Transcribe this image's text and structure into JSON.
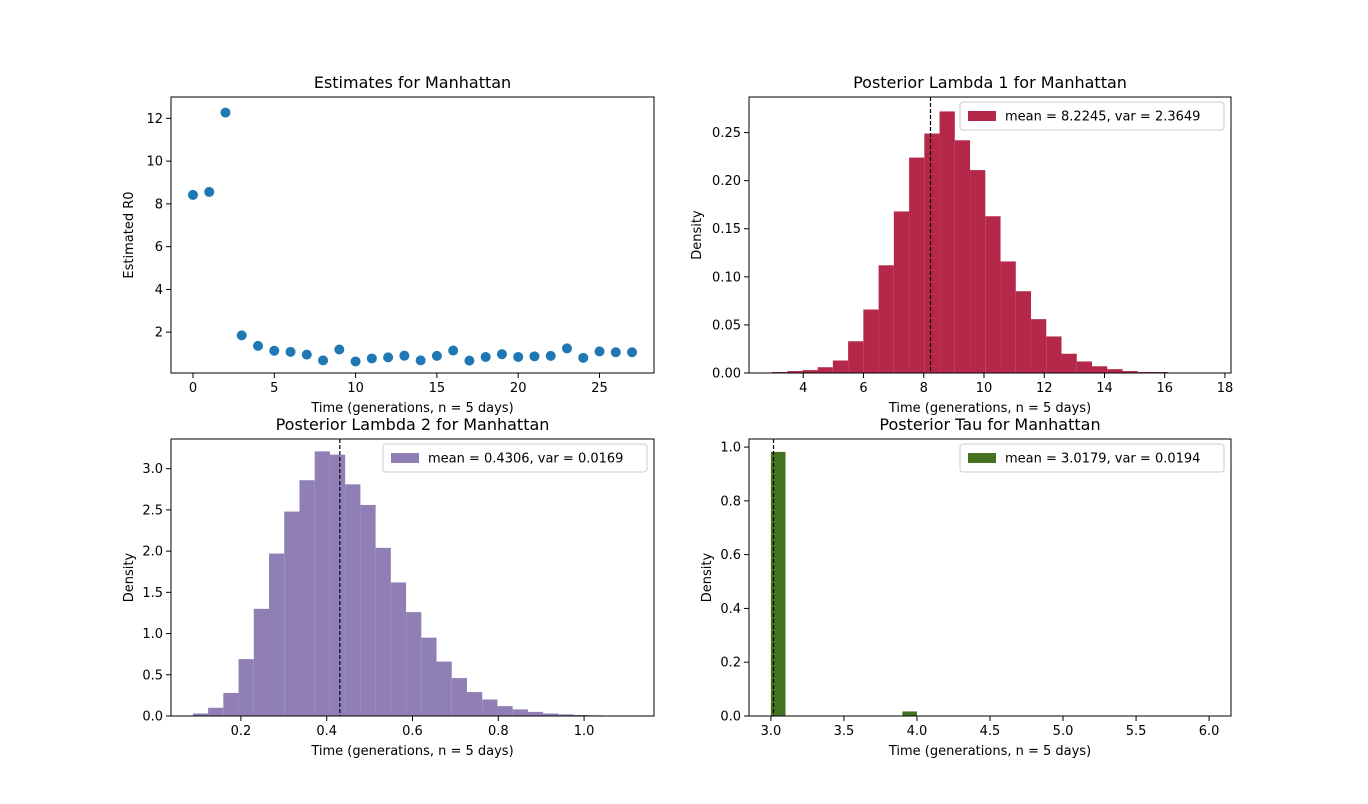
{
  "chart_data": [
    {
      "type": "scatter",
      "title": "Estimates for Manhattan",
      "xlabel": "Time (generations, n = 5 days)",
      "ylabel": "Estimated R0",
      "xlim": [
        -1.35,
        28.35
      ],
      "ylim": [
        0.09,
        13.0
      ],
      "xticks": [
        0,
        5,
        10,
        15,
        20,
        25
      ],
      "yticks": [
        2,
        4,
        6,
        8,
        10,
        12
      ],
      "color": "#1f77b4",
      "x": [
        0,
        1,
        2,
        3,
        4,
        5,
        6,
        7,
        8,
        9,
        10,
        11,
        12,
        13,
        14,
        15,
        16,
        17,
        18,
        19,
        20,
        21,
        22,
        23,
        24,
        25,
        26,
        27
      ],
      "y": [
        8.42,
        8.56,
        12.27,
        1.85,
        1.36,
        1.13,
        1.08,
        0.95,
        0.68,
        1.19,
        0.63,
        0.77,
        0.82,
        0.9,
        0.68,
        0.89,
        1.14,
        0.67,
        0.84,
        0.97,
        0.84,
        0.87,
        0.89,
        1.24,
        0.8,
        1.1,
        1.06,
        1.06
      ]
    },
    {
      "type": "bar",
      "title": "Posterior Lambda 1 for Manhattan",
      "xlabel": "Time (generations, n = 5 days)",
      "ylabel": "Density",
      "xlim": [
        2.2,
        18.2
      ],
      "ylim": [
        0,
        0.287
      ],
      "xticks": [
        4,
        6,
        8,
        10,
        12,
        14,
        16,
        18
      ],
      "yticks": [
        0.0,
        0.05,
        0.1,
        0.15,
        0.2,
        0.25
      ],
      "tick_format": 2,
      "color": "#b5284a",
      "bin_start": 2.96,
      "bin_width": 0.506,
      "values": [
        0.001,
        0.002,
        0.003,
        0.006,
        0.013,
        0.033,
        0.066,
        0.112,
        0.168,
        0.224,
        0.249,
        0.272,
        0.242,
        0.211,
        0.163,
        0.116,
        0.085,
        0.056,
        0.038,
        0.02,
        0.012,
        0.007,
        0.004,
        0.002,
        0.001,
        0.001,
        0.0005,
        0.0003,
        0.0002
      ],
      "mean_line": 8.2245,
      "legend": "mean = 8.2245, var = 2.3649",
      "legend_loc": "upper right"
    },
    {
      "type": "bar",
      "title": "Posterior Lambda 2 for Manhattan",
      "xlabel": "Time (generations, n = 5 days)",
      "ylabel": "Density",
      "xlim": [
        0.037,
        1.163
      ],
      "ylim": [
        0,
        3.36
      ],
      "xticks": [
        0.2,
        0.4,
        0.6,
        0.8,
        1.0
      ],
      "yticks": [
        0.0,
        0.5,
        1.0,
        1.5,
        2.0,
        2.5,
        3.0
      ],
      "tick_format": 1,
      "color": "#8f7fb4",
      "bin_start": 0.088,
      "bin_width": 0.0355,
      "values": [
        0.03,
        0.1,
        0.28,
        0.69,
        1.3,
        1.97,
        2.48,
        2.86,
        3.21,
        3.17,
        2.81,
        2.56,
        2.04,
        1.62,
        1.26,
        0.95,
        0.66,
        0.46,
        0.29,
        0.2,
        0.12,
        0.08,
        0.05,
        0.03,
        0.02,
        0.012,
        0.008,
        0.005,
        0.003
      ],
      "mean_line": 0.4306,
      "legend": "mean = 0.4306, var = 0.0169",
      "legend_loc": "upper right"
    },
    {
      "type": "bar",
      "title": "Posterior Tau for Manhattan",
      "xlabel": "Time (generations, n = 5 days)",
      "ylabel": "Density",
      "xlim": [
        2.85,
        6.15
      ],
      "ylim": [
        0,
        1.03
      ],
      "xticks": [
        3.0,
        3.5,
        4.0,
        4.5,
        5.0,
        5.5,
        6.0
      ],
      "yticks": [
        0.0,
        0.2,
        0.4,
        0.6,
        0.8,
        1.0
      ],
      "tick_format": 1,
      "color": "#457322",
      "bars": [
        {
          "x0": 3.0,
          "x1": 3.1,
          "value": 0.982
        },
        {
          "x0": 3.9,
          "x1": 4.0,
          "value": 0.017
        },
        {
          "x0": 4.9,
          "x1": 5.0,
          "value": 0.002
        },
        {
          "x0": 5.9,
          "x1": 6.0,
          "value": 0.001
        }
      ],
      "mean_line": 3.0179,
      "legend": "mean = 3.0179, var = 0.0194",
      "legend_loc": "upper right"
    }
  ]
}
